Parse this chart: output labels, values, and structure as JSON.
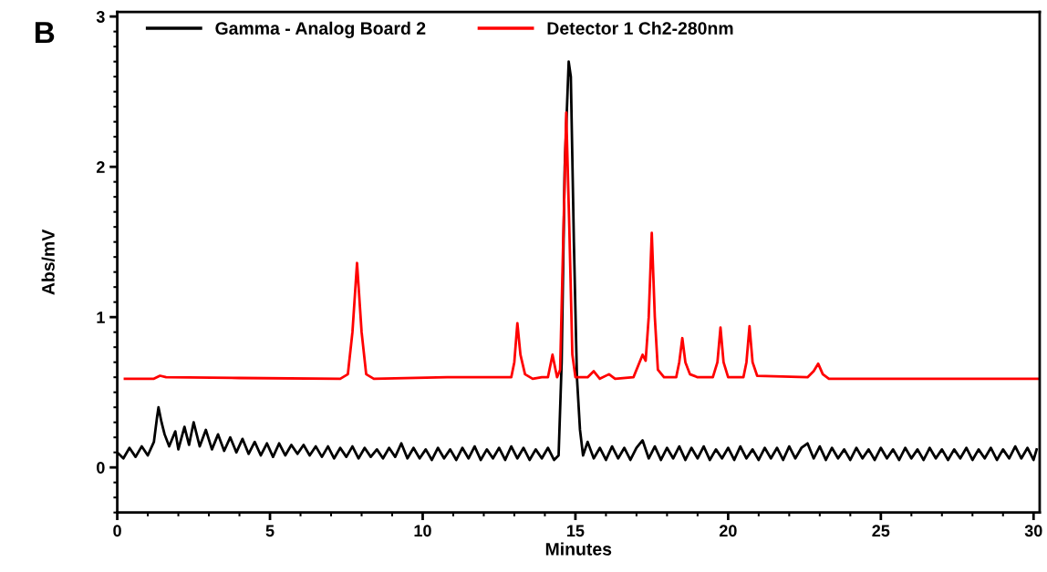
{
  "chart_data": {
    "type": "line",
    "xlabel": "Minutes",
    "ylabel": "Abs/mV",
    "annotations": [
      "B"
    ],
    "xlim": [
      0,
      30.2
    ],
    "ylim": [
      -0.3,
      3.03
    ],
    "xticks": [
      0,
      {
        "value": 1,
        "label": null
      },
      {
        "value": 2,
        "label": null
      },
      {
        "value": 3,
        "label": null
      },
      {
        "value": 4,
        "label": null
      },
      5,
      {
        "value": 6,
        "label": null
      },
      {
        "value": 7,
        "label": null
      },
      {
        "value": 8,
        "label": null
      },
      {
        "value": 9,
        "label": null
      },
      10,
      {
        "value": 11,
        "label": null
      },
      {
        "value": 12,
        "label": null
      },
      {
        "value": 13,
        "label": null
      },
      {
        "value": 14,
        "label": null
      },
      15,
      {
        "value": 16,
        "label": null
      },
      {
        "value": 17,
        "label": null
      },
      {
        "value": 18,
        "label": null
      },
      {
        "value": 19,
        "label": null
      },
      20,
      {
        "value": 21,
        "label": null
      },
      {
        "value": 22,
        "label": null
      },
      {
        "value": 23,
        "label": null
      },
      {
        "value": 24,
        "label": null
      },
      25,
      {
        "value": 26,
        "label": null
      },
      {
        "value": 27,
        "label": null
      },
      {
        "value": 28,
        "label": null
      },
      {
        "value": 29,
        "label": null
      },
      30
    ],
    "yticks": [
      {
        "value": -0.3,
        "label": null
      },
      {
        "value": -0.2,
        "label": null
      },
      {
        "value": -0.1,
        "label": null
      },
      0,
      {
        "value": 0.1,
        "label": null
      },
      {
        "value": 0.2,
        "label": null
      },
      {
        "value": 0.3,
        "label": null
      },
      {
        "value": 0.4,
        "label": null
      },
      {
        "value": 0.5,
        "label": null
      },
      {
        "value": 0.6,
        "label": null
      },
      {
        "value": 0.7,
        "label": null
      },
      {
        "value": 0.8,
        "label": null
      },
      {
        "value": 0.9,
        "label": null
      },
      1,
      {
        "value": 1.1,
        "label": null
      },
      {
        "value": 1.2,
        "label": null
      },
      {
        "value": 1.3,
        "label": null
      },
      {
        "value": 1.4,
        "label": null
      },
      {
        "value": 1.5,
        "label": null
      },
      {
        "value": 1.6,
        "label": null
      },
      {
        "value": 1.7,
        "label": null
      },
      {
        "value": 1.8,
        "label": null
      },
      {
        "value": 1.9,
        "label": null
      },
      2,
      {
        "value": 2.1,
        "label": null
      },
      {
        "value": 2.2,
        "label": null
      },
      {
        "value": 2.3,
        "label": null
      },
      {
        "value": 2.4,
        "label": null
      },
      {
        "value": 2.5,
        "label": null
      },
      {
        "value": 2.6,
        "label": null
      },
      {
        "value": 2.7,
        "label": null
      },
      {
        "value": 2.8,
        "label": null
      },
      {
        "value": 2.9,
        "label": null
      },
      3
    ],
    "grid": false,
    "legend": "top",
    "marker": "none",
    "line_style": "solid",
    "series": [
      {
        "name": "Gamma - Analog Board 2",
        "color": "#000000",
        "x": [
          0,
          0.2,
          0.4,
          0.6,
          0.8,
          1.0,
          1.2,
          1.3,
          1.35,
          1.45,
          1.55,
          1.7,
          1.9,
          2.0,
          2.2,
          2.35,
          2.5,
          2.7,
          2.9,
          3.1,
          3.3,
          3.5,
          3.7,
          3.9,
          4.1,
          4.3,
          4.5,
          4.7,
          4.9,
          5.1,
          5.3,
          5.5,
          5.7,
          5.9,
          6.1,
          6.3,
          6.5,
          6.7,
          6.9,
          7.1,
          7.3,
          7.5,
          7.7,
          7.9,
          8.1,
          8.3,
          8.5,
          8.7,
          8.9,
          9.1,
          9.3,
          9.5,
          9.7,
          9.9,
          10.1,
          10.3,
          10.5,
          10.7,
          10.9,
          11.1,
          11.3,
          11.5,
          11.7,
          11.9,
          12.1,
          12.3,
          12.5,
          12.7,
          12.9,
          13.1,
          13.3,
          13.5,
          13.7,
          13.9,
          14.1,
          14.3,
          14.45,
          14.55,
          14.65,
          14.78,
          14.85,
          14.95,
          15.05,
          15.15,
          15.25,
          15.4,
          15.6,
          15.8,
          16.0,
          16.2,
          16.4,
          16.6,
          16.8,
          17.0,
          17.2,
          17.4,
          17.6,
          17.8,
          18.0,
          18.2,
          18.4,
          18.6,
          18.8,
          19.0,
          19.2,
          19.4,
          19.6,
          19.8,
          20.0,
          20.2,
          20.4,
          20.6,
          20.8,
          21.0,
          21.2,
          21.4,
          21.6,
          21.8,
          22.0,
          22.2,
          22.4,
          22.6,
          22.8,
          23.0,
          23.2,
          23.4,
          23.6,
          23.8,
          24.0,
          24.2,
          24.4,
          24.6,
          24.8,
          25.0,
          25.2,
          25.4,
          25.6,
          25.8,
          26.0,
          26.2,
          26.4,
          26.6,
          26.8,
          27.0,
          27.2,
          27.4,
          27.6,
          27.8,
          28.0,
          28.2,
          28.4,
          28.6,
          28.8,
          29.0,
          29.2,
          29.4,
          29.6,
          29.8,
          30.0,
          30.1
        ],
        "values": [
          0.1,
          0.06,
          0.13,
          0.07,
          0.14,
          0.08,
          0.17,
          0.33,
          0.4,
          0.3,
          0.22,
          0.14,
          0.24,
          0.12,
          0.27,
          0.15,
          0.3,
          0.14,
          0.25,
          0.12,
          0.22,
          0.11,
          0.2,
          0.1,
          0.19,
          0.09,
          0.17,
          0.08,
          0.16,
          0.07,
          0.16,
          0.08,
          0.15,
          0.09,
          0.15,
          0.08,
          0.14,
          0.07,
          0.14,
          0.06,
          0.13,
          0.07,
          0.14,
          0.06,
          0.13,
          0.07,
          0.12,
          0.06,
          0.13,
          0.07,
          0.16,
          0.06,
          0.13,
          0.06,
          0.12,
          0.05,
          0.13,
          0.06,
          0.12,
          0.05,
          0.13,
          0.06,
          0.14,
          0.05,
          0.12,
          0.06,
          0.13,
          0.05,
          0.14,
          0.06,
          0.13,
          0.05,
          0.12,
          0.06,
          0.13,
          0.05,
          0.08,
          0.7,
          2.0,
          2.7,
          2.6,
          1.5,
          0.6,
          0.25,
          0.08,
          0.17,
          0.06,
          0.13,
          0.05,
          0.14,
          0.06,
          0.13,
          0.05,
          0.13,
          0.18,
          0.06,
          0.14,
          0.05,
          0.13,
          0.06,
          0.14,
          0.05,
          0.13,
          0.06,
          0.14,
          0.05,
          0.12,
          0.06,
          0.13,
          0.05,
          0.14,
          0.06,
          0.12,
          0.05,
          0.13,
          0.06,
          0.13,
          0.05,
          0.14,
          0.06,
          0.13,
          0.16,
          0.06,
          0.14,
          0.05,
          0.13,
          0.06,
          0.12,
          0.05,
          0.13,
          0.06,
          0.12,
          0.05,
          0.13,
          0.06,
          0.12,
          0.05,
          0.13,
          0.06,
          0.12,
          0.05,
          0.13,
          0.06,
          0.12,
          0.05,
          0.12,
          0.06,
          0.13,
          0.05,
          0.12,
          0.06,
          0.13,
          0.05,
          0.12,
          0.06,
          0.14,
          0.06,
          0.13,
          0.05,
          0.12
        ]
      },
      {
        "name": "Detector 1 Ch2-280nm",
        "color": "#ff0000",
        "x": [
          0.25,
          1.2,
          1.4,
          1.6,
          4,
          7.3,
          7.55,
          7.7,
          7.85,
          8.0,
          8.15,
          8.4,
          10.8,
          12.9,
          13.0,
          13.1,
          13.2,
          13.35,
          13.6,
          13.9,
          14.1,
          14.25,
          14.4,
          14.5,
          14.6,
          14.7,
          14.8,
          14.9,
          15.0,
          15.4,
          15.6,
          15.8,
          16.1,
          16.3,
          16.9,
          17.1,
          17.2,
          17.3,
          17.4,
          17.5,
          17.6,
          17.7,
          17.9,
          18.3,
          18.4,
          18.5,
          18.6,
          18.75,
          19.0,
          19.5,
          19.65,
          19.75,
          19.85,
          20.0,
          20.5,
          20.6,
          20.7,
          20.8,
          20.95,
          22.6,
          22.8,
          22.95,
          23.1,
          23.3,
          30.2
        ],
        "values": [
          0.59,
          0.59,
          0.61,
          0.6,
          0.595,
          0.59,
          0.62,
          0.9,
          1.36,
          0.9,
          0.62,
          0.59,
          0.6,
          0.6,
          0.7,
          0.96,
          0.75,
          0.62,
          0.59,
          0.6,
          0.6,
          0.75,
          0.6,
          0.65,
          1.5,
          2.36,
          1.6,
          0.75,
          0.6,
          0.6,
          0.64,
          0.59,
          0.62,
          0.59,
          0.6,
          0.7,
          0.75,
          0.71,
          1.0,
          1.56,
          1.0,
          0.65,
          0.6,
          0.6,
          0.7,
          0.86,
          0.7,
          0.62,
          0.6,
          0.6,
          0.7,
          0.93,
          0.7,
          0.6,
          0.6,
          0.7,
          0.94,
          0.7,
          0.61,
          0.6,
          0.64,
          0.69,
          0.62,
          0.59,
          0.59
        ]
      }
    ]
  }
}
